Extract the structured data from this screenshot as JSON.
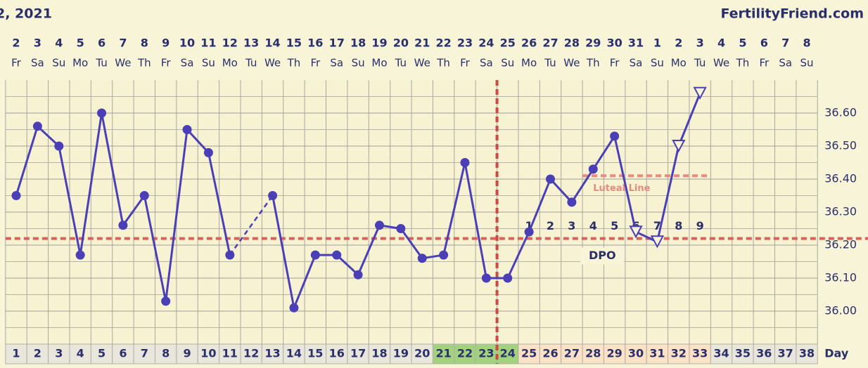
{
  "chart_data": {
    "type": "line",
    "title": "2, 2021",
    "brand": "FertilityFriend.com",
    "dates": [
      "2",
      "3",
      "4",
      "5",
      "6",
      "7",
      "8",
      "9",
      "10",
      "11",
      "12",
      "13",
      "14",
      "15",
      "16",
      "17",
      "18",
      "19",
      "20",
      "21",
      "22",
      "23",
      "24",
      "25",
      "26",
      "27",
      "28",
      "29",
      "30",
      "31",
      "1",
      "2",
      "3",
      "4",
      "5",
      "6",
      "7",
      "8"
    ],
    "weekdays": [
      "Fr",
      "Sa",
      "Su",
      "Mo",
      "Tu",
      "We",
      "Th",
      "Fr",
      "Sa",
      "Su",
      "Mo",
      "Tu",
      "We",
      "Th",
      "Fr",
      "Sa",
      "Su",
      "Mo",
      "Tu",
      "We",
      "Th",
      "Fr",
      "Sa",
      "Su",
      "Mo",
      "Tu",
      "We",
      "Th",
      "Fr",
      "Sa",
      "Su",
      "Mo",
      "Tu",
      "We",
      "Th",
      "Fr",
      "Sa",
      "Su"
    ],
    "x": [
      1,
      2,
      3,
      4,
      5,
      6,
      7,
      8,
      9,
      10,
      11,
      12,
      13,
      14,
      15,
      16,
      17,
      18,
      19,
      20,
      21,
      22,
      23,
      24,
      25,
      26,
      27,
      28,
      29,
      30,
      31,
      32,
      33,
      34,
      35,
      36,
      37,
      38
    ],
    "xlabel": "Day",
    "values": [
      36.35,
      36.56,
      36.5,
      36.17,
      36.6,
      36.26,
      36.35,
      36.03,
      36.55,
      36.48,
      36.17,
      null,
      36.35,
      36.01,
      36.17,
      36.17,
      36.11,
      36.26,
      36.25,
      36.16,
      36.17,
      36.45,
      36.1,
      36.1,
      36.24,
      36.4,
      36.33,
      36.43,
      36.53,
      36.24,
      36.21,
      36.5,
      36.66,
      null,
      null,
      null,
      null,
      null
    ],
    "markers": [
      "dot",
      "dot",
      "dot",
      "dot",
      "dot",
      "dot",
      "dot",
      "dot",
      "dot",
      "dot",
      "dot",
      null,
      "dot",
      "dot",
      "dot",
      "dot",
      "dot",
      "dot",
      "dot",
      "dot",
      "dot",
      "dot",
      "dot",
      "dot",
      "dot",
      "dot",
      "dot",
      "dot",
      "dot",
      "open-triangle",
      "open-triangle",
      "open-triangle",
      "open-triangle",
      null,
      null,
      null,
      null,
      null
    ],
    "color": "#4b3fb8",
    "bridge_gaps": true,
    "ylim": [
      35.9,
      36.7
    ],
    "yticks": [
      {
        "value": 36,
        "label": "36.00"
      },
      {
        "value": 36.1,
        "label": "36.10"
      },
      {
        "value": 36.2,
        "label": "36.20"
      },
      {
        "value": 36.3,
        "label": "36.30"
      },
      {
        "value": 36.4,
        "label": "36.40"
      },
      {
        "value": 36.5,
        "label": "36.50"
      },
      {
        "value": 36.6,
        "label": "36.60"
      }
    ],
    "minor_yticks": [
      35.95,
      36.05,
      36.15,
      36.25,
      36.35,
      36.45,
      36.55,
      36.65
    ],
    "grid": true,
    "coverline": {
      "value": 36.22,
      "color": "#d9625a"
    },
    "ovulation_day": 24,
    "luteal_line": {
      "label": "Luteal Line",
      "value": 36.41,
      "from": 28,
      "to": 33,
      "color": "#e88a80"
    },
    "dpo": {
      "label": "DPO",
      "x": [
        25,
        26,
        27,
        28,
        29,
        30,
        31,
        32,
        33
      ],
      "values": [
        1,
        2,
        3,
        4,
        5,
        6,
        7,
        8,
        9
      ]
    },
    "fertile_days": [
      21,
      22,
      23,
      24
    ],
    "fertile_color": "#a3d27f",
    "luteal_days": [
      25,
      26,
      27,
      28,
      29,
      30,
      31,
      32,
      33
    ],
    "luteal_color": "#fbe2c6"
  }
}
